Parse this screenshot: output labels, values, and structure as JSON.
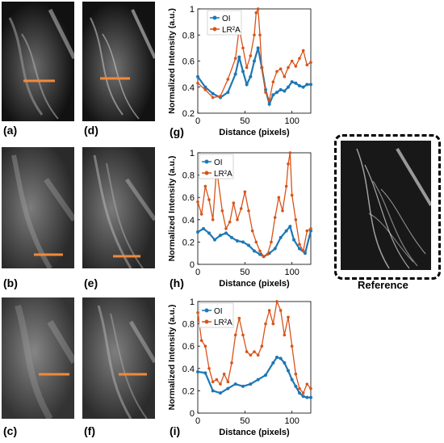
{
  "panels": {
    "a": "(a)",
    "b": "(b)",
    "c": "(c)",
    "d": "(d)",
    "e": "(e)",
    "f": "(f)",
    "g": "(g)",
    "h": "(h)",
    "i": "(i)"
  },
  "reference_label": "Reference",
  "colors": {
    "oi": "#1f77b4",
    "lr2a": "#d95319",
    "line_marker": "#f08a3c",
    "frame": "#000000"
  },
  "chart_data": [
    {
      "type": "line",
      "xlabel": "Distance (pixels)",
      "ylabel": "Normalized Intensity (a.u.)",
      "xlim": [
        0,
        120
      ],
      "ylim": [
        0.2,
        1.0
      ],
      "xticks": [
        0,
        50,
        100
      ],
      "yticks": [
        0.2,
        0.4,
        0.6,
        0.8,
        1.0
      ],
      "ytick_labels": [
        "0.2",
        "0.4",
        "0.6",
        "0.8",
        "1"
      ],
      "legend": "top-right",
      "series": [
        {
          "name": "OI",
          "x": [
            0,
            8,
            16,
            24,
            32,
            40,
            44,
            48,
            52,
            56,
            60,
            64,
            68,
            72,
            76,
            80,
            84,
            88,
            92,
            96,
            100,
            104,
            108,
            112,
            116,
            120
          ],
          "values": [
            0.48,
            0.4,
            0.35,
            0.32,
            0.36,
            0.5,
            0.63,
            0.52,
            0.42,
            0.48,
            0.6,
            0.7,
            0.55,
            0.38,
            0.27,
            0.34,
            0.36,
            0.38,
            0.37,
            0.4,
            0.44,
            0.43,
            0.41,
            0.4,
            0.42,
            0.42
          ]
        },
        {
          "name": "LR²A",
          "x": [
            0,
            8,
            16,
            24,
            32,
            40,
            44,
            48,
            52,
            56,
            60,
            62,
            64,
            66,
            68,
            72,
            76,
            80,
            84,
            88,
            92,
            96,
            100,
            104,
            108,
            112,
            116,
            120
          ],
          "values": [
            0.43,
            0.38,
            0.32,
            0.33,
            0.46,
            0.62,
            0.85,
            0.7,
            0.55,
            0.64,
            0.8,
            0.97,
            1.0,
            0.8,
            0.55,
            0.36,
            0.3,
            0.44,
            0.52,
            0.54,
            0.48,
            0.55,
            0.6,
            0.56,
            0.62,
            0.68,
            0.57,
            0.59
          ]
        }
      ]
    },
    {
      "type": "line",
      "xlabel": "Distance (pixels)",
      "ylabel": "Normalized Intensity (a.u.)",
      "xlim": [
        0,
        120
      ],
      "ylim": [
        0,
        1.0
      ],
      "xticks": [
        0,
        50,
        100
      ],
      "yticks": [
        0,
        0.2,
        0.4,
        0.6,
        0.8,
        1.0
      ],
      "ytick_labels": [
        "0",
        "0.2",
        "0.4",
        "0.6",
        "0.8",
        "1"
      ],
      "legend": "top-left",
      "series": [
        {
          "name": "OI",
          "x": [
            0,
            6,
            12,
            18,
            24,
            30,
            36,
            42,
            48,
            54,
            60,
            66,
            70,
            76,
            82,
            88,
            94,
            98,
            102,
            108,
            114,
            120
          ],
          "values": [
            0.29,
            0.32,
            0.28,
            0.22,
            0.26,
            0.28,
            0.24,
            0.21,
            0.2,
            0.17,
            0.12,
            0.09,
            0.07,
            0.1,
            0.14,
            0.24,
            0.3,
            0.34,
            0.22,
            0.14,
            0.1,
            0.3
          ]
        },
        {
          "name": "LR²A",
          "x": [
            0,
            4,
            8,
            12,
            16,
            20,
            26,
            30,
            34,
            38,
            42,
            46,
            50,
            54,
            58,
            62,
            66,
            70,
            74,
            78,
            82,
            86,
            90,
            94,
            96,
            98,
            100,
            104,
            108,
            112,
            116,
            120
          ],
          "values": [
            0.56,
            0.45,
            0.7,
            0.58,
            0.4,
            0.86,
            0.48,
            0.32,
            0.38,
            0.55,
            0.4,
            0.5,
            0.65,
            0.48,
            0.3,
            0.2,
            0.12,
            0.07,
            0.09,
            0.2,
            0.42,
            0.6,
            0.48,
            0.7,
            0.9,
            1.0,
            0.62,
            0.4,
            0.18,
            0.12,
            0.3,
            0.32
          ]
        }
      ]
    },
    {
      "type": "line",
      "xlabel": "Distance (pixels)",
      "ylabel": "Normalized Intensity (a.u.)",
      "xlim": [
        0,
        120
      ],
      "ylim": [
        0,
        1.0
      ],
      "xticks": [
        0,
        50,
        100
      ],
      "yticks": [
        0,
        0.2,
        0.4,
        0.6,
        0.8,
        1.0
      ],
      "ytick_labels": [
        "0",
        "0.2",
        "0.4",
        "0.6",
        "0.8",
        "1"
      ],
      "legend": "top-left",
      "series": [
        {
          "name": "OI",
          "x": [
            0,
            8,
            16,
            24,
            32,
            40,
            48,
            56,
            64,
            72,
            80,
            84,
            88,
            92,
            96,
            100,
            104,
            108,
            112,
            116,
            120
          ],
          "values": [
            0.37,
            0.36,
            0.2,
            0.18,
            0.22,
            0.26,
            0.24,
            0.26,
            0.3,
            0.34,
            0.45,
            0.5,
            0.49,
            0.45,
            0.38,
            0.3,
            0.24,
            0.18,
            0.15,
            0.14,
            0.14
          ]
        },
        {
          "name": "LR²A",
          "x": [
            0,
            4,
            8,
            12,
            16,
            20,
            24,
            28,
            32,
            36,
            40,
            44,
            48,
            52,
            56,
            60,
            64,
            68,
            72,
            76,
            80,
            84,
            88,
            92,
            96,
            100,
            104,
            108,
            112,
            116,
            120
          ],
          "values": [
            0.9,
            0.65,
            0.6,
            0.4,
            0.28,
            0.3,
            0.26,
            0.35,
            0.28,
            0.45,
            0.7,
            0.85,
            0.7,
            0.55,
            0.52,
            0.55,
            0.52,
            0.6,
            0.8,
            0.92,
            0.8,
            1.0,
            0.92,
            0.7,
            0.86,
            0.6,
            0.35,
            0.22,
            0.18,
            0.26,
            0.22
          ]
        }
      ]
    }
  ]
}
